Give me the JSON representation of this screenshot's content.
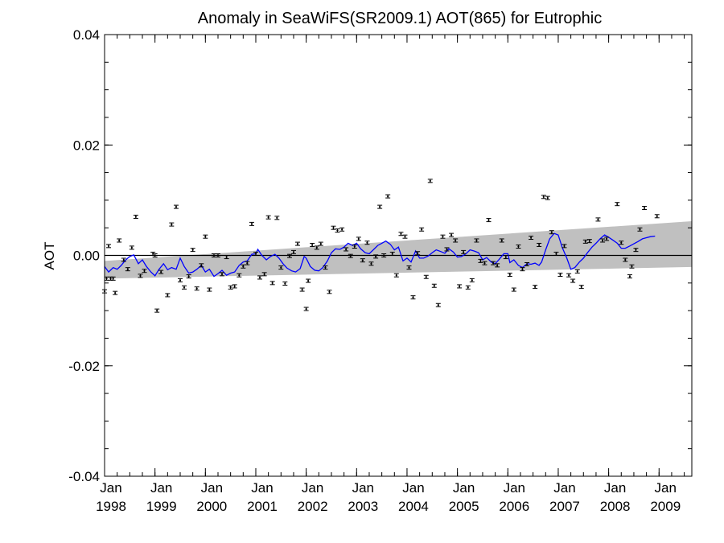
{
  "chart_data": {
    "type": "line",
    "title": "Anomaly in SeaWiFS(SR2009.1) AOT(865) for Eutrophic",
    "xlabel": "",
    "ylabel": "AOT",
    "ylim": [
      -0.04,
      0.04
    ],
    "yticks": [
      "0.04",
      "0.02",
      "0.00",
      "-0.02",
      "-0.04"
    ],
    "ytick_values": [
      0.04,
      0.02,
      0.0,
      -0.02,
      -0.04
    ],
    "xlim": [
      1998.0,
      2009.65
    ],
    "xticks": [
      {
        "month": "Jan",
        "year": "1998",
        "value": 1998.0
      },
      {
        "month": "Jan",
        "year": "1999",
        "value": 1999.0
      },
      {
        "month": "Jan",
        "year": "2000",
        "value": 2000.0
      },
      {
        "month": "Jan",
        "year": "2001",
        "value": 2001.0
      },
      {
        "month": "Jan",
        "year": "2002",
        "value": 2002.0
      },
      {
        "month": "Jan",
        "year": "2003",
        "value": 2003.0
      },
      {
        "month": "Jan",
        "year": "2004",
        "value": 2004.0
      },
      {
        "month": "Jan",
        "year": "2005",
        "value": 2005.0
      },
      {
        "month": "Jan",
        "year": "2006",
        "value": 2006.0
      },
      {
        "month": "Jan",
        "year": "2007",
        "value": 2007.0
      },
      {
        "month": "Jan",
        "year": "2008",
        "value": 2008.0
      },
      {
        "month": "Jan",
        "year": "2009",
        "value": 2009.0
      }
    ],
    "grid": false,
    "zero_line": 0.0,
    "trend_band": {
      "color": "#c0c0c0",
      "x": [
        1998.0,
        2009.65
      ],
      "upper": [
        -0.001,
        0.0062
      ],
      "lower": [
        -0.0042,
        -0.0021
      ]
    },
    "colors": {
      "points": "#000000",
      "smooth": "#0000ff",
      "band": "#c0c0c0"
    },
    "points": [
      [
        1998.0,
        -0.0065
      ],
      [
        1998.04,
        -0.0042
      ],
      [
        1998.08,
        0.0017
      ],
      [
        1998.12,
        -0.0042
      ],
      [
        1998.17,
        -0.0042
      ],
      [
        1998.21,
        -0.0068
      ],
      [
        1998.29,
        0.0027
      ],
      [
        1998.38,
        -0.0008
      ],
      [
        1998.46,
        -0.0025
      ],
      [
        1998.54,
        0.0014
      ],
      [
        1998.62,
        0.007
      ],
      [
        1998.71,
        -0.0037
      ],
      [
        1998.79,
        -0.0028
      ],
      [
        1998.96,
        0.0003
      ],
      [
        1999.0,
        0.0
      ],
      [
        1999.04,
        -0.01
      ],
      [
        1999.12,
        -0.003
      ],
      [
        1999.25,
        -0.0072
      ],
      [
        1999.33,
        0.0056
      ],
      [
        1999.42,
        0.0088
      ],
      [
        1999.5,
        -0.0045
      ],
      [
        1999.58,
        -0.0058
      ],
      [
        1999.67,
        -0.0038
      ],
      [
        1999.75,
        0.001
      ],
      [
        1999.83,
        -0.006
      ],
      [
        1999.92,
        -0.0018
      ],
      [
        2000.0,
        0.0034
      ],
      [
        2000.08,
        -0.0062
      ],
      [
        2000.17,
        0.0
      ],
      [
        2000.25,
        0.0
      ],
      [
        2000.33,
        -0.0034
      ],
      [
        2000.42,
        -0.0003
      ],
      [
        2000.5,
        -0.0058
      ],
      [
        2000.58,
        -0.0056
      ],
      [
        2000.67,
        -0.0036
      ],
      [
        2000.75,
        -0.002
      ],
      [
        2000.83,
        -0.0014
      ],
      [
        2000.92,
        0.0057
      ],
      [
        2001.0,
        0.0003
      ],
      [
        2001.08,
        -0.004
      ],
      [
        2001.17,
        -0.0034
      ],
      [
        2001.25,
        0.0069
      ],
      [
        2001.33,
        -0.005
      ],
      [
        2001.42,
        0.0068
      ],
      [
        2001.5,
        -0.0022
      ],
      [
        2001.58,
        -0.0051
      ],
      [
        2001.67,
        -0.0001
      ],
      [
        2001.75,
        0.0006
      ],
      [
        2001.83,
        0.0021
      ],
      [
        2001.92,
        -0.0062
      ],
      [
        2002.0,
        -0.0097
      ],
      [
        2002.04,
        -0.0046
      ],
      [
        2002.12,
        0.0019
      ],
      [
        2002.21,
        0.0014
      ],
      [
        2002.29,
        0.0021
      ],
      [
        2002.38,
        -0.0022
      ],
      [
        2002.46,
        -0.0066
      ],
      [
        2002.54,
        0.005
      ],
      [
        2002.62,
        0.0045
      ],
      [
        2002.71,
        0.0047
      ],
      [
        2002.79,
        0.0011
      ],
      [
        2002.88,
        -0.0001
      ],
      [
        2002.96,
        0.0016
      ],
      [
        2003.04,
        0.003
      ],
      [
        2003.12,
        -0.0009
      ],
      [
        2003.21,
        0.0023
      ],
      [
        2003.29,
        -0.0015
      ],
      [
        2003.38,
        -0.0002
      ],
      [
        2003.46,
        0.0088
      ],
      [
        2003.54,
        0.0
      ],
      [
        2003.62,
        0.0107
      ],
      [
        2003.71,
        0.0003
      ],
      [
        2003.79,
        -0.0036
      ],
      [
        2003.88,
        0.0039
      ],
      [
        2003.96,
        0.0034
      ],
      [
        2004.04,
        -0.0022
      ],
      [
        2004.12,
        -0.0076
      ],
      [
        2004.21,
        0.0004
      ],
      [
        2004.29,
        0.0047
      ],
      [
        2004.38,
        -0.0039
      ],
      [
        2004.46,
        0.0135
      ],
      [
        2004.54,
        -0.0055
      ],
      [
        2004.62,
        -0.009
      ],
      [
        2004.71,
        0.0034
      ],
      [
        2004.79,
        0.0011
      ],
      [
        2004.88,
        0.0037
      ],
      [
        2004.96,
        0.0027
      ],
      [
        2005.04,
        -0.0056
      ],
      [
        2005.12,
        0.0006
      ],
      [
        2005.21,
        -0.0058
      ],
      [
        2005.29,
        -0.0045
      ],
      [
        2005.38,
        0.0027
      ],
      [
        2005.46,
        -0.001
      ],
      [
        2005.54,
        -0.0014
      ],
      [
        2005.62,
        0.0064
      ],
      [
        2005.71,
        -0.0014
      ],
      [
        2005.79,
        -0.0018
      ],
      [
        2005.88,
        0.0027
      ],
      [
        2005.96,
        -0.0003
      ],
      [
        2006.04,
        -0.0035
      ],
      [
        2006.12,
        -0.0062
      ],
      [
        2006.21,
        0.0016
      ],
      [
        2006.29,
        -0.0025
      ],
      [
        2006.38,
        -0.0016
      ],
      [
        2006.46,
        0.0032
      ],
      [
        2006.54,
        -0.0057
      ],
      [
        2006.62,
        0.0019
      ],
      [
        2006.71,
        0.0106
      ],
      [
        2006.79,
        0.0104
      ],
      [
        2006.87,
        0.0042
      ],
      [
        2006.96,
        0.0003
      ],
      [
        2007.04,
        -0.0035
      ],
      [
        2007.12,
        0.0017
      ],
      [
        2007.21,
        -0.0036
      ],
      [
        2007.29,
        -0.0046
      ],
      [
        2007.38,
        -0.0029
      ],
      [
        2007.46,
        -0.0057
      ],
      [
        2007.54,
        0.0025
      ],
      [
        2007.62,
        0.0026
      ],
      [
        2007.79,
        0.0065
      ],
      [
        2007.88,
        0.0027
      ],
      [
        2007.96,
        0.003
      ],
      [
        2008.17,
        0.0093
      ],
      [
        2008.25,
        0.0023
      ],
      [
        2008.33,
        -0.0008
      ],
      [
        2008.42,
        -0.0038
      ],
      [
        2008.46,
        -0.002
      ],
      [
        2008.54,
        0.001
      ],
      [
        2008.62,
        0.0047
      ],
      [
        2008.71,
        0.0086
      ],
      [
        2008.96,
        0.0071
      ]
    ],
    "smooth_line": [
      [
        1998.0,
        -0.002
      ],
      [
        1998.08,
        -0.003
      ],
      [
        1998.17,
        -0.0022
      ],
      [
        1998.25,
        -0.0025
      ],
      [
        1998.33,
        -0.0018
      ],
      [
        1998.42,
        -0.0008
      ],
      [
        1998.5,
        -0.0002
      ],
      [
        1998.58,
        0.0001
      ],
      [
        1998.67,
        -0.0015
      ],
      [
        1998.75,
        -0.0008
      ],
      [
        1998.83,
        -0.002
      ],
      [
        1998.92,
        -0.003
      ],
      [
        1999.0,
        -0.0037
      ],
      [
        1999.08,
        -0.0025
      ],
      [
        1999.17,
        -0.0015
      ],
      [
        1999.25,
        -0.0026
      ],
      [
        1999.33,
        -0.0022
      ],
      [
        1999.42,
        -0.0025
      ],
      [
        1999.5,
        -0.0005
      ],
      [
        1999.58,
        -0.002
      ],
      [
        1999.67,
        -0.0032
      ],
      [
        1999.75,
        -0.003
      ],
      [
        1999.83,
        -0.0025
      ],
      [
        1999.92,
        -0.0018
      ],
      [
        2000.0,
        -0.003
      ],
      [
        2000.08,
        -0.0025
      ],
      [
        2000.17,
        -0.0038
      ],
      [
        2000.25,
        -0.0033
      ],
      [
        2000.33,
        -0.0027
      ],
      [
        2000.42,
        -0.0036
      ],
      [
        2000.5,
        -0.0032
      ],
      [
        2000.58,
        -0.003
      ],
      [
        2000.67,
        -0.0018
      ],
      [
        2000.75,
        -0.0012
      ],
      [
        2000.83,
        -0.001
      ],
      [
        2000.92,
        0.0002
      ],
      [
        2001.0,
        0.0003
      ],
      [
        2001.04,
        0.0011
      ],
      [
        2001.12,
        0.0
      ],
      [
        2001.21,
        -0.0008
      ],
      [
        2001.29,
        -0.0002
      ],
      [
        2001.38,
        0.0002
      ],
      [
        2001.46,
        -0.0005
      ],
      [
        2001.54,
        -0.0015
      ],
      [
        2001.62,
        -0.0023
      ],
      [
        2001.71,
        -0.0028
      ],
      [
        2001.79,
        -0.003
      ],
      [
        2001.88,
        -0.0024
      ],
      [
        2001.96,
        -0.0002
      ],
      [
        2002.0,
        -0.0005
      ],
      [
        2002.08,
        -0.002
      ],
      [
        2002.17,
        -0.0027
      ],
      [
        2002.25,
        -0.0028
      ],
      [
        2002.33,
        -0.0022
      ],
      [
        2002.42,
        -0.001
      ],
      [
        2002.5,
        0.0005
      ],
      [
        2002.58,
        0.0012
      ],
      [
        2002.67,
        0.0011
      ],
      [
        2002.75,
        0.0015
      ],
      [
        2002.83,
        0.0022
      ],
      [
        2002.92,
        0.0018
      ],
      [
        2003.0,
        0.0022
      ],
      [
        2003.08,
        0.0012
      ],
      [
        2003.17,
        0.0005
      ],
      [
        2003.25,
        0.0003
      ],
      [
        2003.33,
        0.001
      ],
      [
        2003.42,
        0.0018
      ],
      [
        2003.5,
        0.0022
      ],
      [
        2003.58,
        0.0026
      ],
      [
        2003.67,
        0.002
      ],
      [
        2003.75,
        0.001
      ],
      [
        2003.83,
        0.0015
      ],
      [
        2003.92,
        -0.001
      ],
      [
        2004.0,
        -0.0005
      ],
      [
        2004.08,
        -0.0012
      ],
      [
        2004.17,
        0.0008
      ],
      [
        2004.25,
        -0.0005
      ],
      [
        2004.33,
        -0.0005
      ],
      [
        2004.42,
        -0.0001
      ],
      [
        2004.5,
        0.0005
      ],
      [
        2004.58,
        0.001
      ],
      [
        2004.67,
        0.0007
      ],
      [
        2004.75,
        0.0004
      ],
      [
        2004.83,
        0.0012
      ],
      [
        2004.92,
        0.0006
      ],
      [
        2005.0,
        -0.0003
      ],
      [
        2005.08,
        -0.0002
      ],
      [
        2005.17,
        0.0003
      ],
      [
        2005.25,
        0.001
      ],
      [
        2005.33,
        0.0008
      ],
      [
        2005.42,
        0.0005
      ],
      [
        2005.5,
        -0.0008
      ],
      [
        2005.58,
        -0.0004
      ],
      [
        2005.67,
        -0.0012
      ],
      [
        2005.75,
        -0.0015
      ],
      [
        2005.83,
        -0.0007
      ],
      [
        2005.92,
        0.0003
      ],
      [
        2006.0,
        0.0003
      ],
      [
        2006.04,
        -0.0013
      ],
      [
        2006.12,
        -0.0008
      ],
      [
        2006.21,
        -0.0018
      ],
      [
        2006.29,
        -0.0022
      ],
      [
        2006.38,
        -0.0015
      ],
      [
        2006.46,
        -0.0016
      ],
      [
        2006.54,
        -0.0014
      ],
      [
        2006.62,
        -0.0018
      ],
      [
        2006.67,
        -0.0012
      ],
      [
        2006.75,
        0.001
      ],
      [
        2006.83,
        0.003
      ],
      [
        2006.92,
        0.004
      ],
      [
        2007.0,
        0.0037
      ],
      [
        2007.08,
        0.0014
      ],
      [
        2007.17,
        -0.0005
      ],
      [
        2007.25,
        -0.0025
      ],
      [
        2007.33,
        -0.0022
      ],
      [
        2007.42,
        -0.0012
      ],
      [
        2007.5,
        -0.0005
      ],
      [
        2007.58,
        0.0005
      ],
      [
        2007.67,
        0.0015
      ],
      [
        2007.75,
        0.0022
      ],
      [
        2007.83,
        0.003
      ],
      [
        2007.92,
        0.0037
      ],
      [
        2008.0,
        0.0033
      ],
      [
        2008.08,
        0.0028
      ],
      [
        2008.17,
        0.0022
      ],
      [
        2008.25,
        0.0013
      ],
      [
        2008.33,
        0.0013
      ],
      [
        2008.42,
        0.0017
      ],
      [
        2008.5,
        0.0021
      ],
      [
        2008.58,
        0.0025
      ],
      [
        2008.67,
        0.003
      ],
      [
        2008.75,
        0.0032
      ],
      [
        2008.83,
        0.0034
      ],
      [
        2008.92,
        0.0035
      ]
    ]
  }
}
